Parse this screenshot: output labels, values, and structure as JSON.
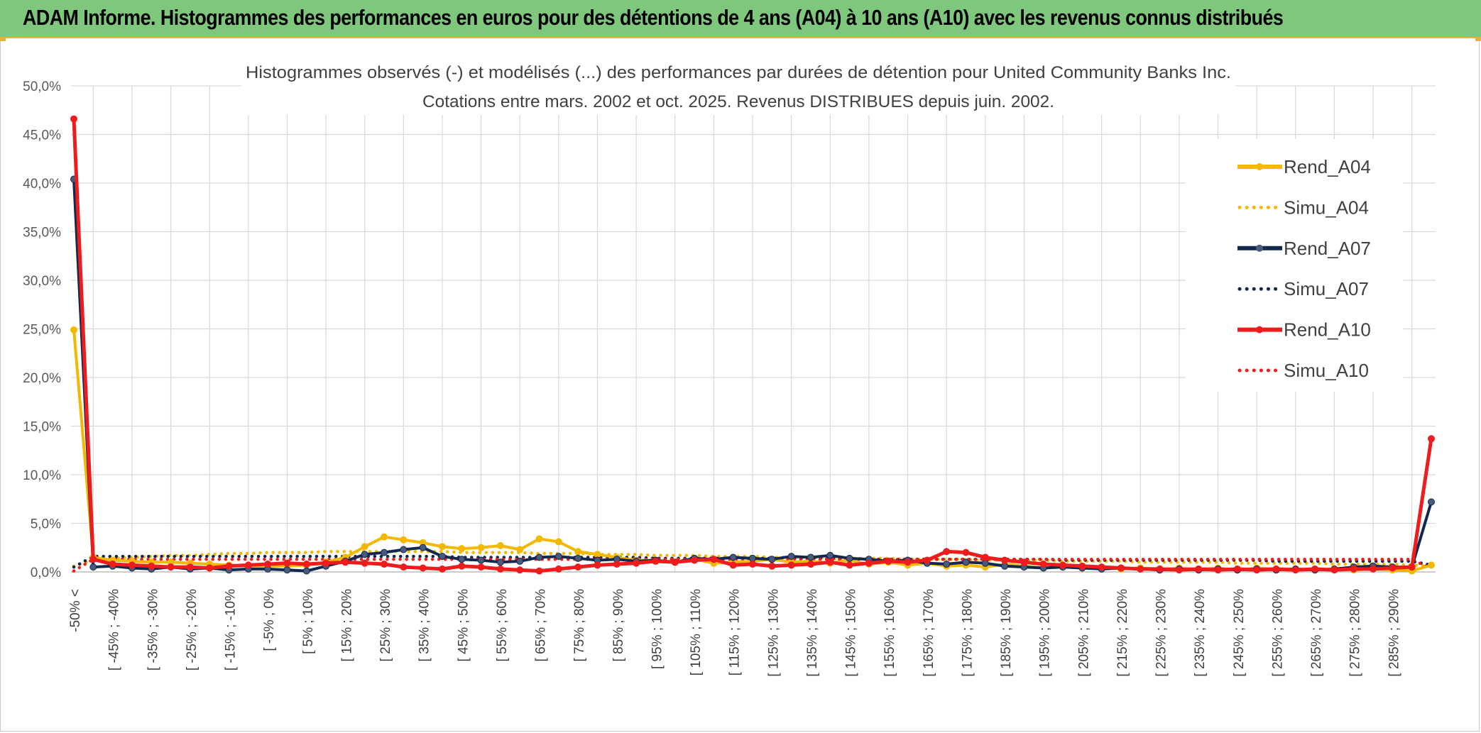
{
  "banner": {
    "title": "ADAM Informe. Histogrammes des performances en euros pour des détentions de 4 ans (A04) à 10 ans (A10) avec les revenus connus distribués",
    "bg_color": "#7fc77c"
  },
  "chart_data": {
    "type": "line",
    "title": "Histogrammes observés (-) et modélisés (...) des performances par durées de détention pour United Community Banks Inc.",
    "subtitle": "Cotations entre mars. 2002 et oct. 2025. Revenus DISTRIBUES depuis juin. 2002.",
    "xlabel": "",
    "ylabel": "",
    "ylim": [
      0,
      50
    ],
    "yticks": [
      "0,0%",
      "5,0%",
      "10,0%",
      "15,0%",
      "20,0%",
      "25,0%",
      "30,0%",
      "35,0%",
      "40,0%",
      "45,0%",
      "50,0%"
    ],
    "grid": true,
    "legend_position": "right",
    "x_tick_labels": [
      "-50% <",
      "[ -45% ; -40%",
      "[ -35% ; -30%",
      "[ -25% ; -20%",
      "[ -15% ; -10%",
      "[ -5% ; 0%",
      "[ 5% ; 10%",
      "[ 15% ; 20%",
      "[ 25% ; 30%",
      "[ 35% ; 40%",
      "[ 45% ; 50%",
      "[ 55% ; 60%",
      "[ 65% ; 70%",
      "[ 75% ; 80%",
      "[ 85% ; 90%",
      "[ 95% ; 100%",
      "[ 105% ; 110%",
      "[ 115% ; 120%",
      "[ 125% ; 130%",
      "[ 135% ; 140%",
      "[ 145% ; 150%",
      "[ 155% ; 160%",
      "[ 165% ; 170%",
      "[ 175% ; 180%",
      "[ 185% ; 190%",
      "[ 195% ; 200%",
      "[ 205% ; 210%",
      "[ 215% ; 220%",
      "[ 225% ; 230%",
      "[ 235% ; 240%",
      "[ 245% ; 250%",
      "[ 255% ; 260%",
      "[ 265% ; 270%",
      "[ 275% ; 280%",
      "[ 285% ; 290%"
    ],
    "n_bins": 71,
    "series": [
      {
        "name": "Rend_A04",
        "color": "#f5b800",
        "style": "solid",
        "values": [
          24.9,
          1.5,
          1.2,
          1.1,
          1.0,
          1.0,
          0.9,
          0.8,
          0.7,
          0.6,
          0.6,
          0.6,
          0.7,
          1.0,
          1.5,
          2.6,
          3.6,
          3.3,
          3.0,
          2.6,
          2.4,
          2.5,
          2.7,
          2.3,
          3.4,
          3.1,
          2.1,
          1.8,
          1.5,
          1.2,
          1.2,
          1.0,
          1.3,
          0.9,
          1.0,
          1.1,
          1.3,
          1.0,
          1.1,
          0.9,
          1.2,
          0.8,
          1.0,
          0.7,
          0.9,
          0.6,
          0.7,
          0.5,
          0.8,
          0.6,
          0.4,
          0.5,
          0.4,
          0.5,
          0.3,
          0.4,
          0.3,
          0.4,
          0.3,
          0.4,
          0.2,
          0.4,
          0.3,
          0.3,
          0.2,
          0.3,
          0.2,
          0.3,
          0.2,
          0.1,
          0.7
        ]
      },
      {
        "name": "Simu_A04",
        "color": "#f5b800",
        "style": "dotted",
        "values": [
          0.6,
          1.2,
          1.4,
          1.5,
          1.6,
          1.7,
          1.7,
          1.8,
          1.9,
          1.9,
          2.0,
          2.0,
          2.0,
          2.1,
          2.1,
          2.1,
          2.1,
          2.1,
          2.1,
          2.1,
          2.0,
          2.0,
          2.0,
          2.0,
          1.9,
          1.9,
          1.9,
          1.8,
          1.8,
          1.8,
          1.7,
          1.7,
          1.7,
          1.6,
          1.6,
          1.6,
          1.5,
          1.5,
          1.5,
          1.4,
          1.4,
          1.4,
          1.4,
          1.3,
          1.3,
          1.3,
          1.3,
          1.2,
          1.2,
          1.2,
          1.2,
          1.1,
          1.1,
          1.1,
          1.1,
          1.0,
          1.0,
          1.0,
          1.0,
          1.0,
          0.9,
          0.9,
          0.9,
          0.9,
          0.9,
          0.8,
          0.8,
          0.8,
          0.8,
          0.7,
          0.6
        ]
      },
      {
        "name": "Rend_A07",
        "color": "#12284f",
        "style": "solid",
        "values": [
          40.4,
          0.5,
          0.6,
          0.4,
          0.3,
          0.5,
          0.3,
          0.4,
          0.2,
          0.3,
          0.3,
          0.2,
          0.1,
          0.6,
          1.1,
          1.8,
          2.0,
          2.3,
          2.5,
          1.6,
          1.3,
          1.2,
          1.0,
          1.1,
          1.5,
          1.6,
          1.4,
          1.2,
          1.3,
          1.1,
          1.2,
          1.0,
          1.4,
          1.3,
          1.5,
          1.4,
          1.3,
          1.6,
          1.5,
          1.7,
          1.4,
          1.3,
          1.1,
          1.2,
          0.9,
          0.8,
          1.0,
          0.9,
          0.6,
          0.5,
          0.4,
          0.5,
          0.4,
          0.3,
          0.4,
          0.3,
          0.2,
          0.3,
          0.2,
          0.3,
          0.2,
          0.3,
          0.2,
          0.3,
          0.2,
          0.3,
          0.5,
          0.6,
          0.5,
          0.5,
          7.2
        ]
      },
      {
        "name": "Simu_A07",
        "color": "#12284f",
        "style": "dotted",
        "values": [
          0.5,
          1.6,
          1.6,
          1.6,
          1.6,
          1.6,
          1.6,
          1.6,
          1.6,
          1.6,
          1.6,
          1.6,
          1.6,
          1.6,
          1.6,
          1.6,
          1.6,
          1.6,
          1.6,
          1.6,
          1.5,
          1.5,
          1.5,
          1.5,
          1.5,
          1.5,
          1.5,
          1.5,
          1.5,
          1.5,
          1.4,
          1.4,
          1.4,
          1.4,
          1.4,
          1.4,
          1.4,
          1.4,
          1.4,
          1.4,
          1.4,
          1.3,
          1.3,
          1.3,
          1.3,
          1.3,
          1.3,
          1.3,
          1.3,
          1.3,
          1.3,
          1.2,
          1.2,
          1.2,
          1.2,
          1.2,
          1.2,
          1.2,
          1.2,
          1.2,
          1.2,
          1.2,
          1.1,
          1.1,
          1.1,
          1.1,
          1.1,
          1.1,
          1.1,
          1.1,
          0.7
        ]
      },
      {
        "name": "Rend_A10",
        "color": "#ee1c1c",
        "style": "solid",
        "values": [
          46.6,
          1.3,
          0.8,
          0.7,
          0.6,
          0.5,
          0.5,
          0.4,
          0.6,
          0.7,
          0.8,
          0.9,
          0.8,
          0.9,
          1.0,
          0.9,
          0.8,
          0.5,
          0.4,
          0.3,
          0.6,
          0.5,
          0.3,
          0.2,
          0.1,
          0.3,
          0.5,
          0.7,
          0.8,
          0.9,
          1.1,
          1.0,
          1.2,
          1.3,
          0.7,
          0.8,
          0.6,
          0.7,
          0.8,
          1.0,
          0.7,
          0.9,
          1.1,
          1.0,
          1.2,
          2.1,
          2.0,
          1.5,
          1.2,
          1.0,
          0.8,
          0.7,
          0.6,
          0.5,
          0.4,
          0.3,
          0.3,
          0.2,
          0.3,
          0.2,
          0.3,
          0.2,
          0.3,
          0.2,
          0.3,
          0.2,
          0.3,
          0.3,
          0.4,
          0.5,
          13.7
        ]
      },
      {
        "name": "Simu_A10",
        "color": "#ee1c1c",
        "style": "dotted",
        "values": [
          0.1,
          1.3,
          1.3,
          1.3,
          1.3,
          1.3,
          1.3,
          1.3,
          1.3,
          1.3,
          1.3,
          1.3,
          1.3,
          1.3,
          1.3,
          1.3,
          1.3,
          1.3,
          1.3,
          1.3,
          1.3,
          1.3,
          1.3,
          1.3,
          1.3,
          1.3,
          1.3,
          1.3,
          1.3,
          1.3,
          1.3,
          1.3,
          1.3,
          1.3,
          1.3,
          1.3,
          1.3,
          1.3,
          1.3,
          1.3,
          1.3,
          1.3,
          1.3,
          1.3,
          1.3,
          1.3,
          1.3,
          1.3,
          1.3,
          1.3,
          1.3,
          1.3,
          1.3,
          1.3,
          1.3,
          1.3,
          1.3,
          1.3,
          1.3,
          1.3,
          1.3,
          1.3,
          1.3,
          1.3,
          1.3,
          1.3,
          1.3,
          1.3,
          1.3,
          1.3,
          0.3
        ]
      }
    ]
  }
}
